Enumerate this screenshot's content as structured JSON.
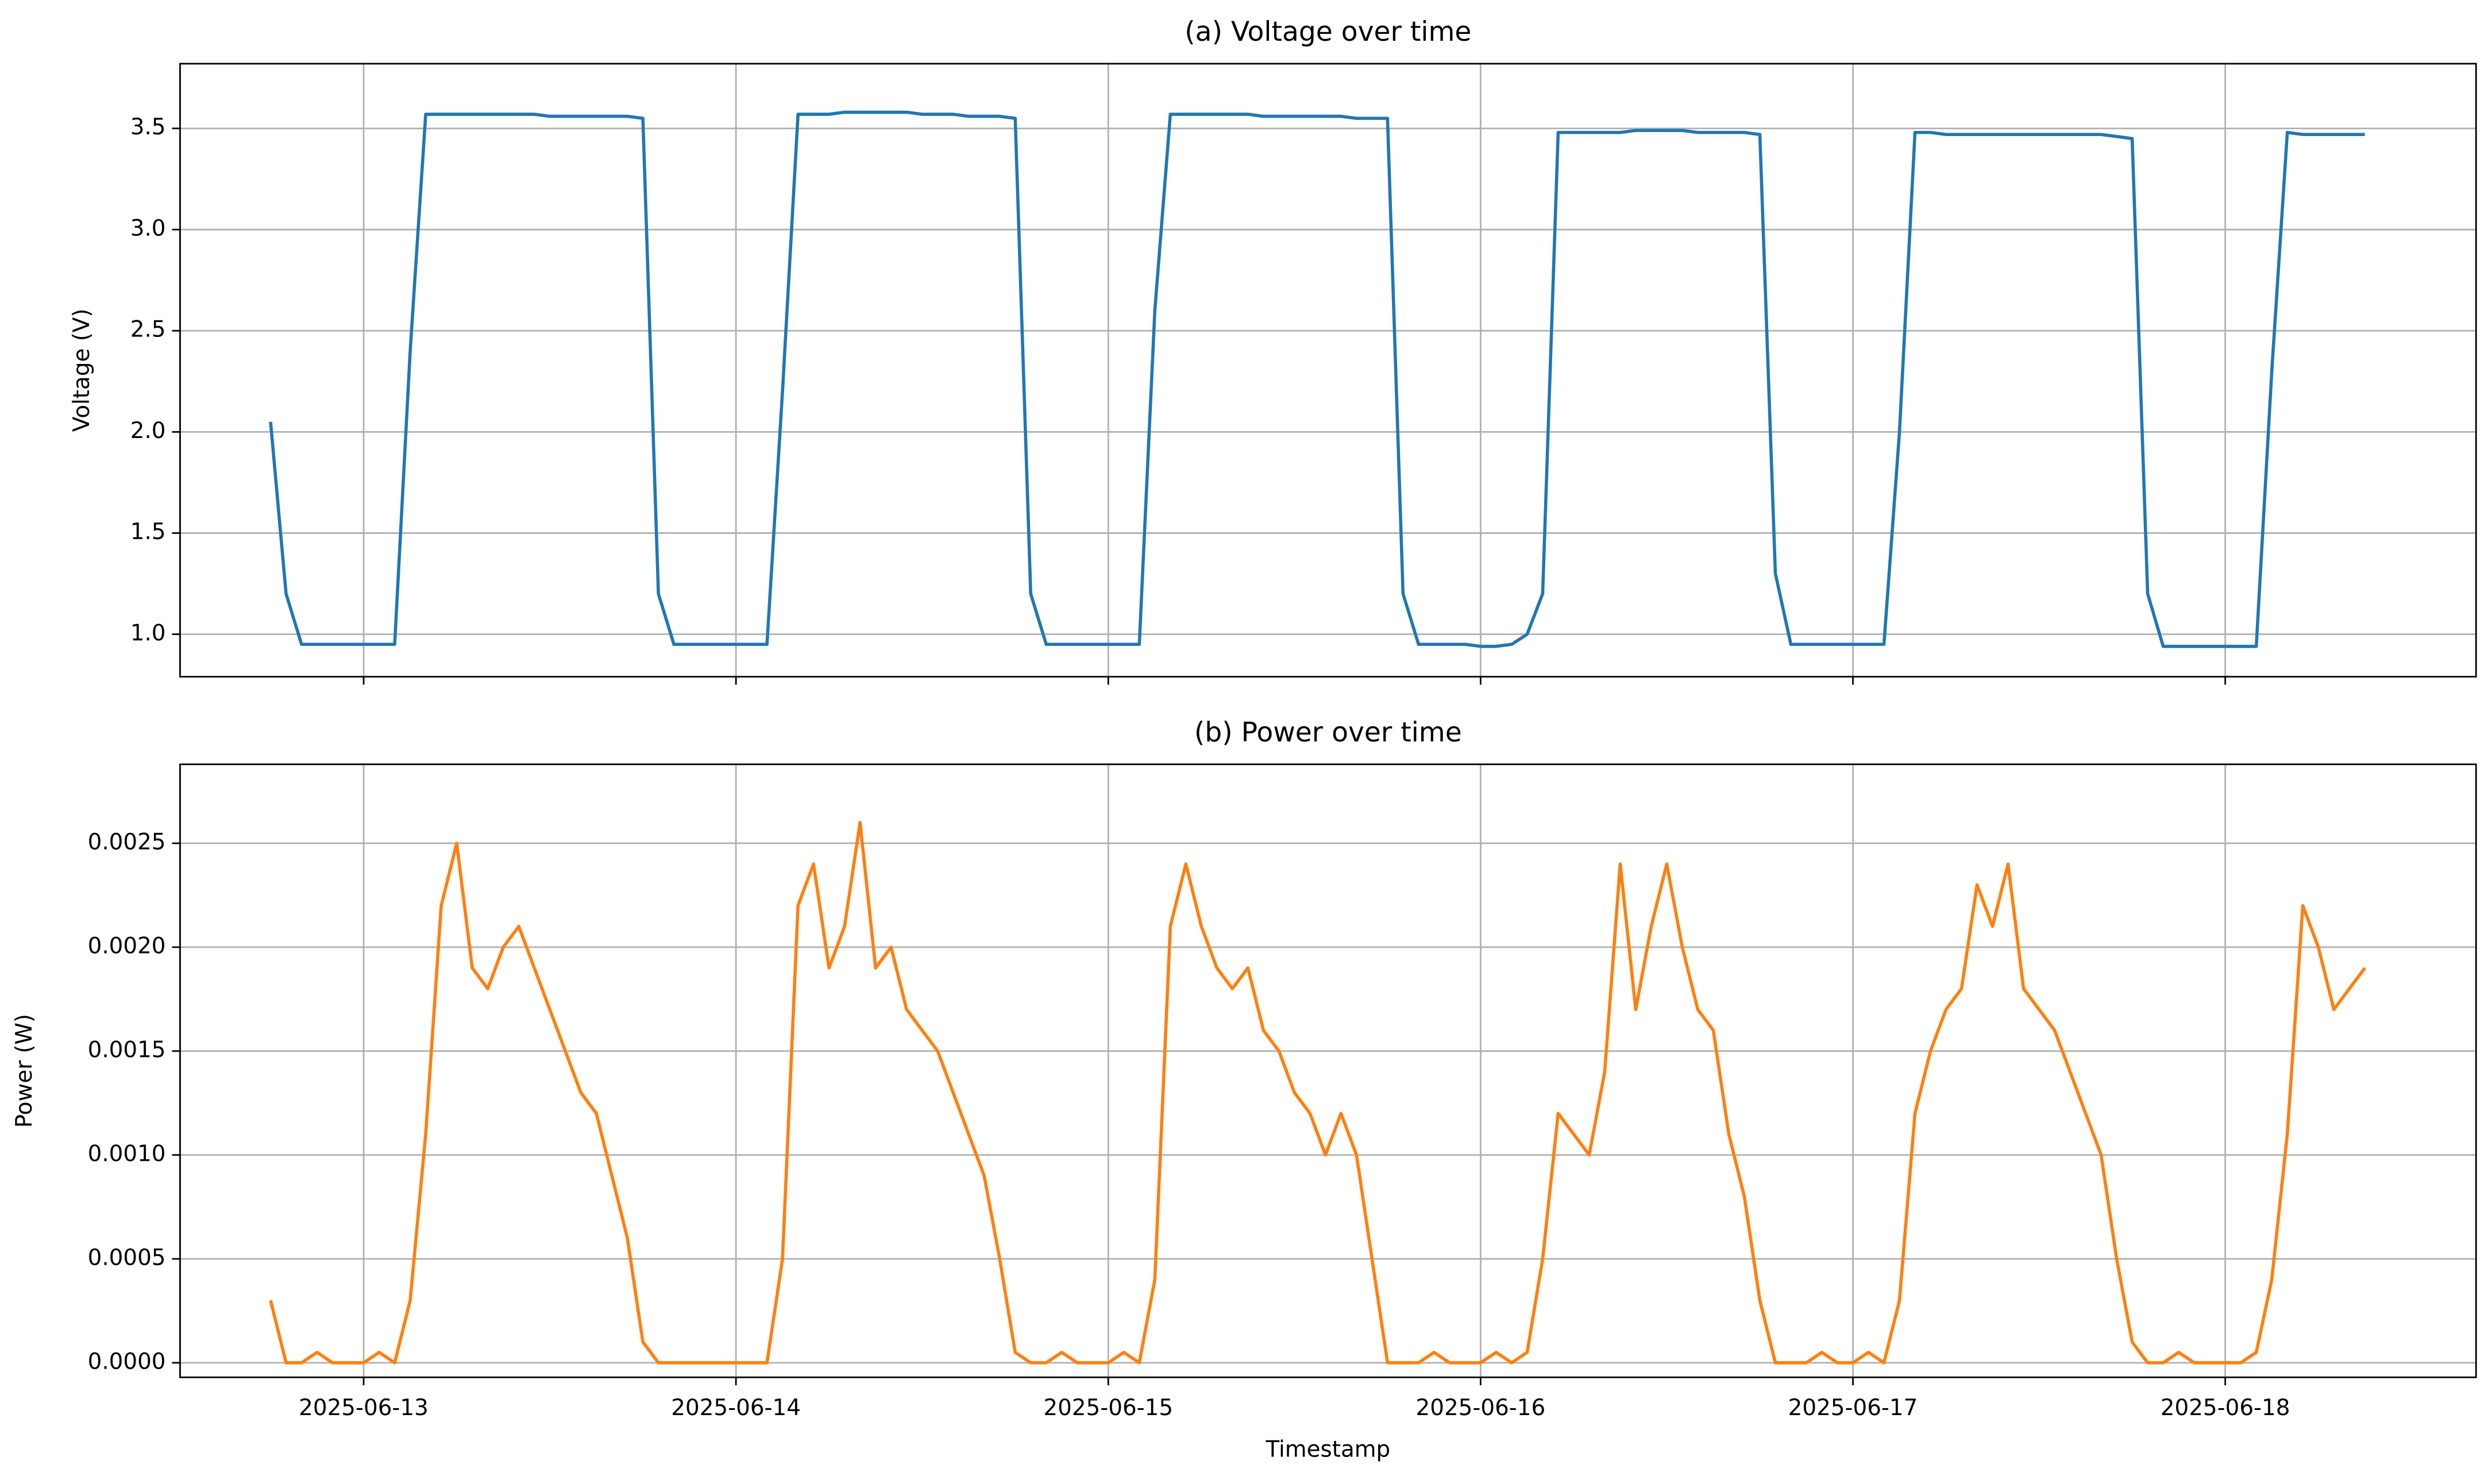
{
  "chart_data": [
    {
      "type": "line",
      "title": "(a) Voltage over time",
      "ylabel": "Voltage (V)",
      "color": "#1f77b4",
      "grid": true,
      "xtick_labels": false,
      "xlim": [
        "2025-06-12 12:10",
        "2025-06-18 16:10"
      ],
      "xticks": [
        "2025-06-13",
        "2025-06-14",
        "2025-06-15",
        "2025-06-16",
        "2025-06-17",
        "2025-06-18"
      ],
      "ylim": [
        0.79,
        3.82
      ],
      "yticks": [
        {
          "value": 1,
          "label": "1.0"
        },
        1.5,
        {
          "value": 2,
          "label": "2.0"
        },
        2.5,
        {
          "value": 3,
          "label": "3.0"
        },
        3.5
      ],
      "x": [
        "2025-06-12 18:00",
        "2025-06-12 19:00",
        "2025-06-12 20:00",
        "2025-06-12 21:00",
        "2025-06-12 22:00",
        "2025-06-12 23:00",
        "2025-06-13 00:00",
        "2025-06-13 01:00",
        "2025-06-13 02:00",
        "2025-06-13 03:00",
        "2025-06-13 04:00",
        "2025-06-13 05:00",
        "2025-06-13 06:00",
        "2025-06-13 07:00",
        "2025-06-13 08:00",
        "2025-06-13 09:00",
        "2025-06-13 10:00",
        "2025-06-13 11:00",
        "2025-06-13 12:00",
        "2025-06-13 13:00",
        "2025-06-13 14:00",
        "2025-06-13 15:00",
        "2025-06-13 16:00",
        "2025-06-13 17:00",
        "2025-06-13 18:00",
        "2025-06-13 19:00",
        "2025-06-13 20:00",
        "2025-06-13 21:00",
        "2025-06-13 22:00",
        "2025-06-13 23:00",
        "2025-06-14 00:00",
        "2025-06-14 01:00",
        "2025-06-14 02:00",
        "2025-06-14 03:00",
        "2025-06-14 04:00",
        "2025-06-14 05:00",
        "2025-06-14 06:00",
        "2025-06-14 07:00",
        "2025-06-14 08:00",
        "2025-06-14 09:00",
        "2025-06-14 10:00",
        "2025-06-14 11:00",
        "2025-06-14 12:00",
        "2025-06-14 13:00",
        "2025-06-14 14:00",
        "2025-06-14 15:00",
        "2025-06-14 16:00",
        "2025-06-14 17:00",
        "2025-06-14 18:00",
        "2025-06-14 19:00",
        "2025-06-14 20:00",
        "2025-06-14 21:00",
        "2025-06-14 22:00",
        "2025-06-14 23:00",
        "2025-06-15 00:00",
        "2025-06-15 01:00",
        "2025-06-15 02:00",
        "2025-06-15 03:00",
        "2025-06-15 04:00",
        "2025-06-15 05:00",
        "2025-06-15 06:00",
        "2025-06-15 07:00",
        "2025-06-15 08:00",
        "2025-06-15 09:00",
        "2025-06-15 10:00",
        "2025-06-15 11:00",
        "2025-06-15 12:00",
        "2025-06-15 13:00",
        "2025-06-15 14:00",
        "2025-06-15 15:00",
        "2025-06-15 16:00",
        "2025-06-15 17:00",
        "2025-06-15 18:00",
        "2025-06-15 19:00",
        "2025-06-15 20:00",
        "2025-06-15 21:00",
        "2025-06-15 22:00",
        "2025-06-15 23:00",
        "2025-06-16 00:00",
        "2025-06-16 01:00",
        "2025-06-16 02:00",
        "2025-06-16 03:00",
        "2025-06-16 04:00",
        "2025-06-16 05:00",
        "2025-06-16 06:00",
        "2025-06-16 07:00",
        "2025-06-16 08:00",
        "2025-06-16 09:00",
        "2025-06-16 10:00",
        "2025-06-16 11:00",
        "2025-06-16 12:00",
        "2025-06-16 13:00",
        "2025-06-16 14:00",
        "2025-06-16 15:00",
        "2025-06-16 16:00",
        "2025-06-16 17:00",
        "2025-06-16 18:00",
        "2025-06-16 19:00",
        "2025-06-16 20:00",
        "2025-06-16 21:00",
        "2025-06-16 22:00",
        "2025-06-16 23:00",
        "2025-06-17 00:00",
        "2025-06-17 01:00",
        "2025-06-17 02:00",
        "2025-06-17 03:00",
        "2025-06-17 04:00",
        "2025-06-17 05:00",
        "2025-06-17 06:00",
        "2025-06-17 07:00",
        "2025-06-17 08:00",
        "2025-06-17 09:00",
        "2025-06-17 10:00",
        "2025-06-17 11:00",
        "2025-06-17 12:00",
        "2025-06-17 13:00",
        "2025-06-17 14:00",
        "2025-06-17 15:00",
        "2025-06-17 16:00",
        "2025-06-17 17:00",
        "2025-06-17 18:00",
        "2025-06-17 19:00",
        "2025-06-17 20:00",
        "2025-06-17 21:00",
        "2025-06-17 22:00",
        "2025-06-17 23:00",
        "2025-06-18 00:00",
        "2025-06-18 01:00",
        "2025-06-18 02:00",
        "2025-06-18 03:00",
        "2025-06-18 04:00",
        "2025-06-18 05:00",
        "2025-06-18 06:00",
        "2025-06-18 07:00",
        "2025-06-18 08:00",
        "2025-06-18 09:00"
      ],
      "values": [
        2.05,
        1.2,
        0.95,
        0.95,
        0.95,
        0.95,
        0.95,
        0.95,
        0.95,
        2.4,
        3.57,
        3.57,
        3.57,
        3.57,
        3.57,
        3.57,
        3.57,
        3.57,
        3.56,
        3.56,
        3.56,
        3.56,
        3.56,
        3.56,
        3.55,
        1.2,
        0.95,
        0.95,
        0.95,
        0.95,
        0.95,
        0.95,
        0.95,
        2.2,
        3.57,
        3.57,
        3.57,
        3.58,
        3.58,
        3.58,
        3.58,
        3.58,
        3.57,
        3.57,
        3.57,
        3.56,
        3.56,
        3.56,
        3.55,
        1.2,
        0.95,
        0.95,
        0.95,
        0.95,
        0.95,
        0.95,
        0.95,
        2.6,
        3.57,
        3.57,
        3.57,
        3.57,
        3.57,
        3.57,
        3.56,
        3.56,
        3.56,
        3.56,
        3.56,
        3.56,
        3.55,
        3.55,
        3.55,
        1.2,
        0.95,
        0.95,
        0.95,
        0.95,
        0.94,
        0.94,
        0.95,
        1.0,
        1.2,
        3.48,
        3.48,
        3.48,
        3.48,
        3.48,
        3.49,
        3.49,
        3.49,
        3.49,
        3.48,
        3.48,
        3.48,
        3.48,
        3.47,
        1.3,
        0.95,
        0.95,
        0.95,
        0.95,
        0.95,
        0.95,
        0.95,
        2.0,
        3.48,
        3.48,
        3.47,
        3.47,
        3.47,
        3.47,
        3.47,
        3.47,
        3.47,
        3.47,
        3.47,
        3.47,
        3.47,
        3.46,
        3.45,
        1.2,
        0.94,
        0.94,
        0.94,
        0.94,
        0.94,
        0.94,
        0.94,
        2.3,
        3.48,
        3.47,
        3.47,
        3.47,
        3.47,
        3.47
      ]
    },
    {
      "type": "line",
      "title": "(b) Power over time",
      "ylabel": "Power (W)",
      "xlabel": "Timestamp",
      "color": "#ff7f0e",
      "grid": true,
      "xtick_labels": true,
      "xlim": [
        "2025-06-12 12:10",
        "2025-06-18 16:10"
      ],
      "xticks": [
        "2025-06-13",
        "2025-06-14",
        "2025-06-15",
        "2025-06-16",
        "2025-06-17",
        "2025-06-18"
      ],
      "ylim": [
        -7e-05,
        0.00288
      ],
      "yticks": [
        {
          "value": 0,
          "label": "0.0000"
        },
        {
          "value": 0.0005,
          "label": "0.0005"
        },
        {
          "value": 0.001,
          "label": "0.0010"
        },
        {
          "value": 0.0015,
          "label": "0.0015"
        },
        {
          "value": 0.002,
          "label": "0.0020"
        },
        {
          "value": 0.0025,
          "label": "0.0025"
        }
      ],
      "x": [
        "2025-06-12 18:00",
        "2025-06-12 19:00",
        "2025-06-12 20:00",
        "2025-06-12 21:00",
        "2025-06-12 22:00",
        "2025-06-12 23:00",
        "2025-06-13 00:00",
        "2025-06-13 01:00",
        "2025-06-13 02:00",
        "2025-06-13 03:00",
        "2025-06-13 04:00",
        "2025-06-13 05:00",
        "2025-06-13 06:00",
        "2025-06-13 07:00",
        "2025-06-13 08:00",
        "2025-06-13 09:00",
        "2025-06-13 10:00",
        "2025-06-13 11:00",
        "2025-06-13 12:00",
        "2025-06-13 13:00",
        "2025-06-13 14:00",
        "2025-06-13 15:00",
        "2025-06-13 16:00",
        "2025-06-13 17:00",
        "2025-06-13 18:00",
        "2025-06-13 19:00",
        "2025-06-13 20:00",
        "2025-06-13 21:00",
        "2025-06-13 22:00",
        "2025-06-13 23:00",
        "2025-06-14 00:00",
        "2025-06-14 01:00",
        "2025-06-14 02:00",
        "2025-06-14 03:00",
        "2025-06-14 04:00",
        "2025-06-14 05:00",
        "2025-06-14 06:00",
        "2025-06-14 07:00",
        "2025-06-14 08:00",
        "2025-06-14 09:00",
        "2025-06-14 10:00",
        "2025-06-14 11:00",
        "2025-06-14 12:00",
        "2025-06-14 13:00",
        "2025-06-14 14:00",
        "2025-06-14 15:00",
        "2025-06-14 16:00",
        "2025-06-14 17:00",
        "2025-06-14 18:00",
        "2025-06-14 19:00",
        "2025-06-14 20:00",
        "2025-06-14 21:00",
        "2025-06-14 22:00",
        "2025-06-14 23:00",
        "2025-06-15 00:00",
        "2025-06-15 01:00",
        "2025-06-15 02:00",
        "2025-06-15 03:00",
        "2025-06-15 04:00",
        "2025-06-15 05:00",
        "2025-06-15 06:00",
        "2025-06-15 07:00",
        "2025-06-15 08:00",
        "2025-06-15 09:00",
        "2025-06-15 10:00",
        "2025-06-15 11:00",
        "2025-06-15 12:00",
        "2025-06-15 13:00",
        "2025-06-15 14:00",
        "2025-06-15 15:00",
        "2025-06-15 16:00",
        "2025-06-15 17:00",
        "2025-06-15 18:00",
        "2025-06-15 19:00",
        "2025-06-15 20:00",
        "2025-06-15 21:00",
        "2025-06-15 22:00",
        "2025-06-15 23:00",
        "2025-06-16 00:00",
        "2025-06-16 01:00",
        "2025-06-16 02:00",
        "2025-06-16 03:00",
        "2025-06-16 04:00",
        "2025-06-16 05:00",
        "2025-06-16 06:00",
        "2025-06-16 07:00",
        "2025-06-16 08:00",
        "2025-06-16 09:00",
        "2025-06-16 10:00",
        "2025-06-16 11:00",
        "2025-06-16 12:00",
        "2025-06-16 13:00",
        "2025-06-16 14:00",
        "2025-06-16 15:00",
        "2025-06-16 16:00",
        "2025-06-16 17:00",
        "2025-06-16 18:00",
        "2025-06-16 19:00",
        "2025-06-16 20:00",
        "2025-06-16 21:00",
        "2025-06-16 22:00",
        "2025-06-16 23:00",
        "2025-06-17 00:00",
        "2025-06-17 01:00",
        "2025-06-17 02:00",
        "2025-06-17 03:00",
        "2025-06-17 04:00",
        "2025-06-17 05:00",
        "2025-06-17 06:00",
        "2025-06-17 07:00",
        "2025-06-17 08:00",
        "2025-06-17 09:00",
        "2025-06-17 10:00",
        "2025-06-17 11:00",
        "2025-06-17 12:00",
        "2025-06-17 13:00",
        "2025-06-17 14:00",
        "2025-06-17 15:00",
        "2025-06-17 16:00",
        "2025-06-17 17:00",
        "2025-06-17 18:00",
        "2025-06-17 19:00",
        "2025-06-17 20:00",
        "2025-06-17 21:00",
        "2025-06-17 22:00",
        "2025-06-17 23:00",
        "2025-06-18 00:00",
        "2025-06-18 01:00",
        "2025-06-18 02:00",
        "2025-06-18 03:00",
        "2025-06-18 04:00",
        "2025-06-18 05:00",
        "2025-06-18 06:00",
        "2025-06-18 07:00",
        "2025-06-18 08:00",
        "2025-06-18 09:00"
      ],
      "values": [
        0.0003,
        0,
        0,
        5e-05,
        0,
        0,
        0,
        5e-05,
        0,
        0.0003,
        0.0011,
        0.0022,
        0.0025,
        0.0019,
        0.0018,
        0.002,
        0.0021,
        0.0019,
        0.0017,
        0.0015,
        0.0013,
        0.0012,
        0.0009,
        0.0006,
        0.0001,
        0,
        0,
        0,
        0,
        0,
        0,
        0,
        0,
        0.0005,
        0.0022,
        0.0024,
        0.0019,
        0.0021,
        0.0026,
        0.0019,
        0.002,
        0.0017,
        0.0016,
        0.0015,
        0.0013,
        0.0011,
        0.0009,
        0.0005,
        5e-05,
        0,
        0,
        5e-05,
        0,
        0,
        0,
        5e-05,
        0,
        0.0004,
        0.0021,
        0.0024,
        0.0021,
        0.0019,
        0.0018,
        0.0019,
        0.0016,
        0.0015,
        0.0013,
        0.0012,
        0.001,
        0.0012,
        0.001,
        0.0005,
        0,
        0,
        0,
        5e-05,
        0,
        0,
        0,
        5e-05,
        0,
        5e-05,
        0.0005,
        0.0012,
        0.0011,
        0.001,
        0.0014,
        0.0024,
        0.0017,
        0.0021,
        0.0024,
        0.002,
        0.0017,
        0.0016,
        0.0011,
        0.0008,
        0.0003,
        0,
        0,
        0,
        5e-05,
        0,
        0,
        5e-05,
        0,
        0.0003,
        0.0012,
        0.0015,
        0.0017,
        0.0018,
        0.0023,
        0.0021,
        0.0024,
        0.0018,
        0.0017,
        0.0016,
        0.0014,
        0.0012,
        0.001,
        0.0005,
        0.0001,
        0,
        0,
        5e-05,
        0,
        0,
        0,
        0,
        5e-05,
        0.0004,
        0.0011,
        0.0022,
        0.002,
        0.0017,
        0.0018,
        0.0019
      ]
    }
  ]
}
